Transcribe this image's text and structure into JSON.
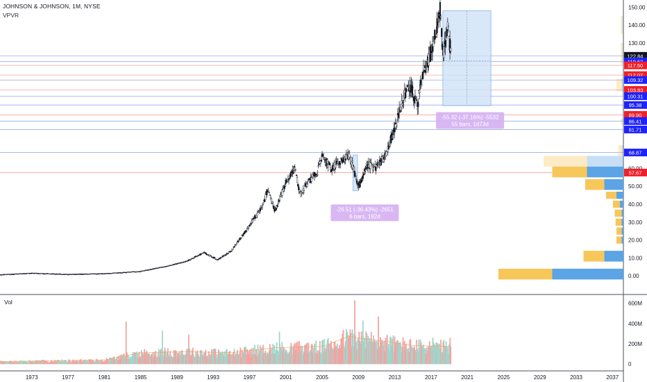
{
  "header": {
    "title": "JOHNSON & JOHNSON, 1M, NYSE",
    "indicator": "VPVR"
  },
  "volume_pane": {
    "label": "Vol"
  },
  "colors": {
    "up": "#26a69a",
    "down": "#ef5350",
    "candle": "#131722",
    "vol_up": "#9fd6cc",
    "vol_down": "#f4a3a1",
    "vol_ma": "#f0a35a",
    "vpvr_yellow": "#f7c75a",
    "vpvr_blue": "#5ba4e5",
    "blue_line": "#4a67d6",
    "red_line": "#ef5350",
    "measure_fill": "#cfe3f8",
    "measure_label": "#d6b3f2"
  },
  "chart_data": [
    {
      "type": "candlestick",
      "title": "JOHNSON & JOHNSON, 1M, NYSE",
      "x_axis": {
        "type": "year",
        "range": [
          1969.5,
          2038.2
        ],
        "ticks": [
          "1973",
          "1977",
          "1981",
          "1985",
          "1989",
          "1993",
          "1997",
          "2001",
          "2005",
          "2009",
          "2013",
          "2017",
          "2021",
          "2025",
          "2029",
          "2033",
          "2037"
        ]
      },
      "y_axis": {
        "range": [
          -10,
          154
        ],
        "ticks": [
          "0.00",
          "10.00",
          "20.00",
          "30.00",
          "40.00",
          "50.00",
          "60.00",
          "130.00",
          "140.00",
          "150.00"
        ]
      },
      "price_path": [
        {
          "x": 1969.5,
          "y": 0.6
        },
        {
          "x": 1973,
          "y": 1.5
        },
        {
          "x": 1977,
          "y": 0.8
        },
        {
          "x": 1981,
          "y": 1.2
        },
        {
          "x": 1985,
          "y": 2.5
        },
        {
          "x": 1987.5,
          "y": 5
        },
        {
          "x": 1990,
          "y": 8
        },
        {
          "x": 1992,
          "y": 13
        },
        {
          "x": 1993.5,
          "y": 9
        },
        {
          "x": 1995,
          "y": 14
        },
        {
          "x": 1997,
          "y": 28
        },
        {
          "x": 1998.5,
          "y": 40
        },
        {
          "x": 1999,
          "y": 48
        },
        {
          "x": 1999.8,
          "y": 36
        },
        {
          "x": 2001,
          "y": 52
        },
        {
          "x": 2002,
          "y": 60
        },
        {
          "x": 2002.6,
          "y": 45
        },
        {
          "x": 2003.5,
          "y": 53
        },
        {
          "x": 2004.5,
          "y": 58
        },
        {
          "x": 2005,
          "y": 67
        },
        {
          "x": 2006,
          "y": 60
        },
        {
          "x": 2007,
          "y": 64
        },
        {
          "x": 2008,
          "y": 68
        },
        {
          "x": 2009,
          "y": 50
        },
        {
          "x": 2010,
          "y": 62
        },
        {
          "x": 2011,
          "y": 60
        },
        {
          "x": 2012,
          "y": 68
        },
        {
          "x": 2013,
          "y": 82
        },
        {
          "x": 2014,
          "y": 100
        },
        {
          "x": 2014.5,
          "y": 108
        },
        {
          "x": 2015.5,
          "y": 95
        },
        {
          "x": 2016,
          "y": 112
        },
        {
          "x": 2017,
          "y": 125
        },
        {
          "x": 2017.5,
          "y": 135
        },
        {
          "x": 2018,
          "y": 148
        },
        {
          "x": 2018.3,
          "y": 122
        },
        {
          "x": 2018.8,
          "y": 140
        },
        {
          "x": 2019.2,
          "y": 122.84
        }
      ],
      "price_labels": [
        {
          "value": "122.84",
          "color": "#131722"
        },
        {
          "value": "119.62",
          "color": "#1e22ff"
        },
        {
          "value": "117.50",
          "color": "#f0202a"
        },
        {
          "value": "112.07",
          "color": "#f0202a"
        },
        {
          "value": "109.32",
          "color": "#1e22ff"
        },
        {
          "value": "103.83",
          "color": "#f0202a"
        },
        {
          "value": "100.31",
          "color": "#1e22ff"
        },
        {
          "value": "95.38",
          "color": "#1e22ff"
        },
        {
          "value": "89.90",
          "color": "#f0202a"
        },
        {
          "value": "86.41",
          "color": "#1e22ff"
        },
        {
          "value": "81.71",
          "color": "#1e22ff"
        },
        {
          "value": "68.87",
          "color": "#1e22ff"
        },
        {
          "value": "57.67",
          "color": "#f0202a"
        }
      ],
      "horizontal_levels": [
        {
          "y": 122.84,
          "color": "blue"
        },
        {
          "y": 119.62,
          "color": "blue"
        },
        {
          "y": 117.5,
          "color": "red"
        },
        {
          "y": 112.07,
          "color": "red"
        },
        {
          "y": 109.32,
          "color": "blue"
        },
        {
          "y": 103.83,
          "color": "red"
        },
        {
          "y": 100.31,
          "color": "blue"
        },
        {
          "y": 95.38,
          "color": "blue"
        },
        {
          "y": 89.9,
          "color": "red"
        },
        {
          "y": 86.41,
          "color": "blue"
        },
        {
          "y": 81.71,
          "color": "blue"
        },
        {
          "y": 68.87,
          "color": "blue"
        },
        {
          "y": 57.67,
          "color": "red"
        }
      ],
      "vpvr": [
        {
          "y0": -2,
          "y1": 4,
          "up": 0.31,
          "down": 0.41
        },
        {
          "y0": 8,
          "y1": 14,
          "up": 0.12,
          "down": 0.11
        },
        {
          "y0": 18,
          "y1": 22,
          "up": 0.03,
          "down": 0.01
        },
        {
          "y0": 23,
          "y1": 27,
          "up": 0.03,
          "down": 0.01
        },
        {
          "y0": 28,
          "y1": 32,
          "up": 0.035,
          "down": 0.01
        },
        {
          "y0": 33,
          "y1": 37,
          "up": 0.04,
          "down": 0.01
        },
        {
          "y0": 38,
          "y1": 42,
          "up": 0.04,
          "down": 0.02
        },
        {
          "y0": 43,
          "y1": 47,
          "up": 0.06,
          "down": 0.04
        },
        {
          "y0": 48,
          "y1": 54,
          "up": 0.11,
          "down": 0.11
        },
        {
          "y0": 55,
          "y1": 61,
          "up": 0.2,
          "down": 0.21
        },
        {
          "y0": 61,
          "y1": 67,
          "up": 0.25,
          "down": 0.21,
          "light": true
        },
        {
          "y0": 67,
          "y1": 73,
          "up": 0.02,
          "down": 0.01,
          "light": true
        },
        {
          "y0": 84,
          "y1": 88,
          "up": 0.01,
          "down": 0.005,
          "light": true
        },
        {
          "y0": 103,
          "y1": 110,
          "up": 0.03,
          "down": 0.01,
          "light": true
        },
        {
          "y0": 118,
          "y1": 130,
          "up": 0.01,
          "down": 0.005,
          "light": true
        },
        {
          "y0": 135,
          "y1": 145,
          "up": 0.01,
          "down": 0.005,
          "light": true
        }
      ],
      "measurements": [
        {
          "x0": 2008.4,
          "x1": 2008.9,
          "y_top": 67.5,
          "y_bottom": 47.5,
          "line1": "-26.51 (-36.43%) -2651",
          "line2": "6 bars, 182d",
          "label_year": 2009.7,
          "label_y": 36
        },
        {
          "x0": 2018.3,
          "x1": 2023.6,
          "y_top": 148,
          "y_bottom": 95,
          "line1": "-55.32 (-37.16%) -5532",
          "line2": "55 bars, 1673d",
          "label_year": 2021.3,
          "label_y": 87.5
        }
      ]
    },
    {
      "type": "bar",
      "title": "Vol",
      "y_axis": {
        "range": [
          -60,
          680
        ],
        "ticks": [
          "0",
          "200M",
          "400M",
          "600M"
        ]
      },
      "approx_profile": [
        {
          "x": 1969.5,
          "v": 25
        },
        {
          "x": 1981,
          "v": 40
        },
        {
          "x": 1985,
          "v": 110
        },
        {
          "x": 1990,
          "v": 120
        },
        {
          "x": 1995,
          "v": 110
        },
        {
          "x": 2000,
          "v": 160
        },
        {
          "x": 2005,
          "v": 170
        },
        {
          "x": 2008,
          "v": 270
        },
        {
          "x": 2009,
          "v": 250
        },
        {
          "x": 2012,
          "v": 220
        },
        {
          "x": 2015,
          "v": 180
        },
        {
          "x": 2019.2,
          "v": 170
        }
      ],
      "spikes": [
        {
          "x": 1983.4,
          "v": 420
        },
        {
          "x": 1987.4,
          "v": 330
        },
        {
          "x": 1990.3,
          "v": 290
        },
        {
          "x": 2000.3,
          "v": 320
        },
        {
          "x": 2008.6,
          "v": 630
        },
        {
          "x": 2009.5,
          "v": 430
        },
        {
          "x": 2011.2,
          "v": 470
        },
        {
          "x": 2017.2,
          "v": 260
        },
        {
          "x": 2019.1,
          "v": 260
        }
      ]
    }
  ]
}
